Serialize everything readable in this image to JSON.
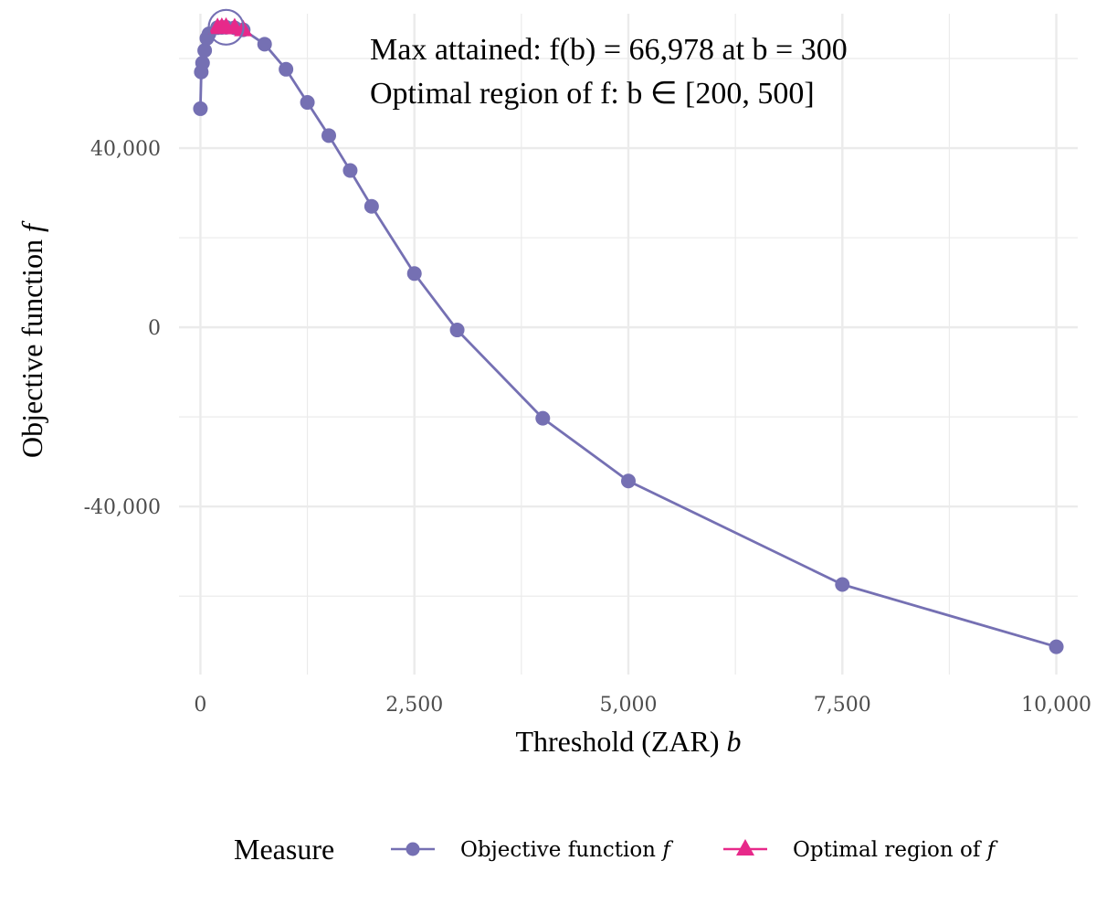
{
  "chart_data": {
    "type": "line",
    "title": "",
    "xlabel": "Threshold (ZAR) ",
    "xlabel_var": "b",
    "ylabel": "Objective function ",
    "ylabel_var": "f",
    "xlim": [
      -250,
      10250
    ],
    "ylim": [
      -77500,
      70000
    ],
    "x_ticks": [
      0,
      2500,
      5000,
      7500,
      10000
    ],
    "x_tick_labels": [
      "0",
      "2,500",
      "5,000",
      "7,500",
      "10,000"
    ],
    "y_ticks": [
      -40000,
      0,
      40000
    ],
    "y_tick_labels": [
      "-40,000",
      "0",
      "40,000"
    ],
    "y_minor": [
      -60000,
      -20000,
      20000,
      60000
    ],
    "x_minor": [
      1250,
      3750,
      6250,
      8750
    ],
    "grid": true,
    "series": [
      {
        "name": "Objective function ",
        "name_var": "f",
        "color": "#7570b3",
        "marker": "circle",
        "x": [
          0,
          10,
          25,
          50,
          75,
          100,
          200,
          250,
          300,
          400,
          500,
          750,
          1000,
          1250,
          1500,
          1750,
          2000,
          2500,
          3000,
          4000,
          5000,
          7500,
          10000
        ],
        "y": [
          48800,
          57000,
          59000,
          61800,
          64500,
          65500,
          66900,
          66950,
          66978,
          66850,
          66400,
          63200,
          57600,
          50200,
          42800,
          35000,
          27000,
          12000,
          -600,
          -20300,
          -34300,
          -57400,
          -71300
        ]
      },
      {
        "name": "Optimal region of ",
        "name_var": "f",
        "color": "#e7298a",
        "marker": "triangle",
        "x": [
          200,
          250,
          300,
          400,
          500
        ],
        "y": [
          66900,
          66950,
          66978,
          66850,
          66400
        ]
      }
    ],
    "highlight": {
      "x": 300,
      "y": 66978,
      "marker": "open-circle"
    },
    "annotations": {
      "line1": "Max attained: f(b) = 66,978 at b = 300",
      "line2": "Optimal region of f: b ∈  [200, 500]"
    },
    "legend": {
      "title": "Measure",
      "position": "bottom"
    }
  }
}
